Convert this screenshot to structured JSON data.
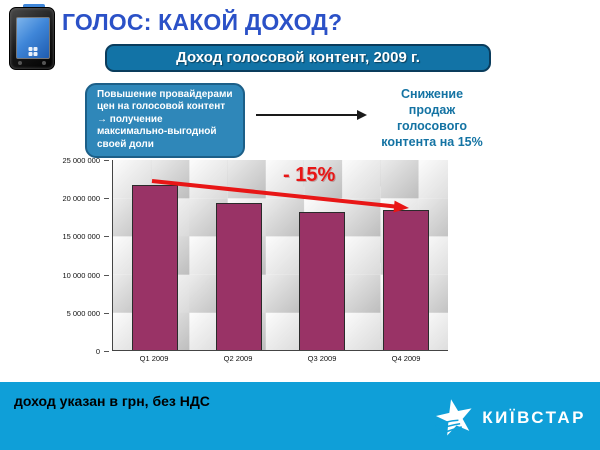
{
  "header": {
    "title": "ГОЛОС: КАКОЙ ДОХОД?",
    "banner": "Доход голосовой контент, 2009 г."
  },
  "annotations": {
    "callout": "Повышение провайдерами\nцен на голосовой контент\n→ получение\nмаксимально-выгодной\nсвоей доли",
    "side_note": "Снижение\nпродаж\nголосового\nконтента на 15%",
    "trend_label": "- 15%"
  },
  "chart_data": {
    "type": "bar",
    "title": "Доход голосовой контент, 2009 г.",
    "categories": [
      "Q1 2009",
      "Q2 2009",
      "Q3 2009",
      "Q4 2009"
    ],
    "values": [
      21700000,
      19400000,
      18200000,
      18400000
    ],
    "ylim": [
      0,
      25000000
    ],
    "yticks": [
      "25 000 000",
      "20 000 000",
      "15 000 000",
      "10 000 000",
      "5 000 000",
      "0"
    ],
    "xlabel": "",
    "ylabel": "",
    "grid": false,
    "legend": false,
    "bar_color": "#993366",
    "annotation": {
      "text": "- 15%",
      "color": "#e81616",
      "style": "red-arrow-declining"
    }
  },
  "footer": {
    "note": "доход указан в грн, без НДС",
    "logo_text": "КИЇВСТАР"
  },
  "icons": {
    "phone": "pda-phone-icon",
    "black_arrow": "right-arrow-icon",
    "trend_arrow": "trend-arrow-icon",
    "logo_star": "kyivstar-star-icon"
  },
  "colors": {
    "title": "#2b51c7",
    "banner_bg": "#1273a6",
    "banner_border": "#0a3c5c",
    "callout_bg": "#2f87b9",
    "callout_border": "#1c5f88",
    "side_note_text": "#1473a3",
    "bar_fill": "#993366",
    "trend_red": "#e81616",
    "footer_bg": "#0f9fd8"
  }
}
